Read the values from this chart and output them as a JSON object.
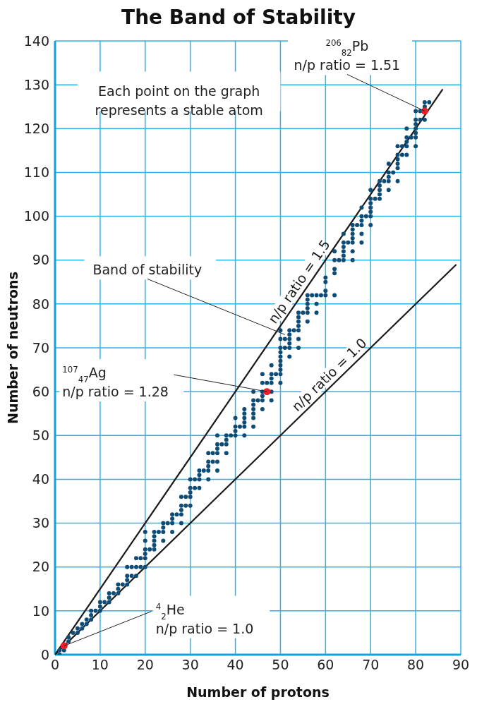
{
  "chart_data": {
    "type": "scatter",
    "title": "The Band of Stability",
    "xlabel": "Number of protons",
    "ylabel": "Number of neutrons",
    "xlim": [
      0,
      90
    ],
    "xticks": [
      0,
      10,
      20,
      30,
      40,
      50,
      60,
      70,
      80,
      90
    ],
    "ylim": [
      0,
      140
    ],
    "yticks": [
      0,
      10,
      20,
      30,
      40,
      50,
      60,
      70,
      80,
      90,
      100,
      110,
      120,
      130,
      140
    ],
    "grid": true,
    "legend": false,
    "marker": "circle",
    "series": [
      {
        "type": "scatter",
        "color": "#0f4c75",
        "x": [
          1,
          1,
          2,
          3,
          3,
          4,
          5,
          5,
          6,
          6,
          7,
          7,
          8,
          8,
          8,
          9,
          10,
          10,
          10,
          11,
          12,
          12,
          12,
          13,
          14,
          14,
          14,
          15,
          16,
          16,
          16,
          16,
          17,
          17,
          18,
          18,
          18,
          19,
          19,
          20,
          20,
          20,
          20,
          20,
          20,
          21,
          22,
          22,
          22,
          22,
          22,
          23,
          24,
          24,
          24,
          24,
          25,
          26,
          26,
          26,
          26,
          27,
          28,
          28,
          28,
          28,
          28,
          29,
          29,
          30,
          30,
          30,
          30,
          30,
          31,
          31,
          32,
          32,
          32,
          32,
          33,
          34,
          34,
          34,
          34,
          34,
          35,
          35,
          36,
          36,
          36,
          36,
          36,
          36,
          37,
          38,
          38,
          38,
          38,
          39,
          40,
          40,
          40,
          40,
          41,
          42,
          42,
          42,
          42,
          42,
          42,
          44,
          44,
          44,
          44,
          44,
          44,
          44,
          45,
          46,
          46,
          46,
          46,
          46,
          46,
          47,
          48,
          48,
          48,
          48,
          48,
          48,
          49,
          50,
          50,
          50,
          50,
          50,
          50,
          50,
          50,
          50,
          50,
          51,
          51,
          52,
          52,
          52,
          52,
          52,
          52,
          53,
          54,
          54,
          54,
          54,
          54,
          54,
          54,
          55,
          56,
          56,
          56,
          56,
          56,
          56,
          57,
          58,
          58,
          58,
          59,
          60,
          60,
          60,
          60,
          62,
          62,
          62,
          62,
          62,
          63,
          64,
          64,
          64,
          64,
          64,
          64,
          65,
          66,
          66,
          66,
          66,
          66,
          66,
          66,
          67,
          68,
          68,
          68,
          68,
          68,
          68,
          69,
          70,
          70,
          70,
          70,
          70,
          70,
          70,
          71,
          72,
          72,
          72,
          72,
          72,
          73,
          74,
          74,
          74,
          74,
          74,
          75,
          76,
          76,
          76,
          76,
          76,
          76,
          77,
          77,
          78,
          78,
          78,
          78,
          78,
          79,
          80,
          80,
          80,
          80,
          80,
          80,
          80,
          81,
          81,
          82,
          82,
          82,
          83
        ],
        "values": [
          0,
          1,
          1,
          3,
          4,
          5,
          5,
          6,
          6,
          7,
          7,
          8,
          8,
          9,
          10,
          10,
          10,
          11,
          12,
          12,
          12,
          13,
          14,
          14,
          14,
          15,
          16,
          16,
          16,
          17,
          18,
          20,
          18,
          20,
          18,
          20,
          22,
          20,
          22,
          20,
          22,
          23,
          24,
          26,
          28,
          24,
          24,
          25,
          26,
          27,
          28,
          28,
          26,
          28,
          29,
          30,
          30,
          28,
          30,
          31,
          32,
          32,
          30,
          32,
          33,
          34,
          36,
          34,
          36,
          34,
          36,
          37,
          38,
          40,
          38,
          40,
          38,
          40,
          41,
          42,
          42,
          40,
          42,
          43,
          44,
          46,
          44,
          46,
          42,
          44,
          46,
          47,
          48,
          50,
          48,
          46,
          48,
          49,
          50,
          50,
          50,
          51,
          52,
          54,
          52,
          50,
          52,
          53,
          54,
          55,
          56,
          52,
          54,
          55,
          56,
          57,
          58,
          60,
          58,
          56,
          58,
          59,
          60,
          62,
          64,
          62,
          58,
          60,
          62,
          63,
          64,
          66,
          64,
          62,
          64,
          65,
          66,
          67,
          68,
          69,
          70,
          72,
          74,
          70,
          72,
          68,
          70,
          71,
          72,
          73,
          74,
          74,
          70,
          72,
          74,
          75,
          76,
          77,
          78,
          78,
          76,
          78,
          79,
          80,
          81,
          82,
          82,
          78,
          80,
          82,
          82,
          82,
          83,
          85,
          86,
          82,
          87,
          88,
          90,
          92,
          90,
          90,
          91,
          92,
          93,
          94,
          96,
          94,
          90,
          92,
          94,
          95,
          96,
          97,
          98,
          98,
          94,
          96,
          98,
          99,
          100,
          102,
          100,
          98,
          100,
          101,
          102,
          103,
          104,
          106,
          104,
          104,
          105,
          106,
          107,
          108,
          108,
          106,
          108,
          109,
          110,
          112,
          110,
          108,
          111,
          112,
          113,
          114,
          116,
          114,
          116,
          114,
          116,
          117,
          118,
          120,
          118,
          116,
          118,
          119,
          120,
          121,
          122,
          124,
          122,
          124,
          122,
          125,
          126,
          126
        ]
      },
      {
        "type": "scatter",
        "color": "#e8202a",
        "x": [
          2,
          47,
          82
        ],
        "values": [
          2,
          60,
          124
        ]
      },
      {
        "marker": "none",
        "name": "n/p ratio = 1.5",
        "type": "line",
        "color": "#1a1a1a",
        "x": [
          0,
          86
        ],
        "values": [
          0,
          129
        ]
      },
      {
        "type": "line",
        "marker": "none",
        "name": "n/p ratio = 1.0",
        "color": "#1a1a1a",
        "x": [
          0,
          89
        ],
        "values": [
          0,
          89
        ]
      }
    ],
    "annotations": [
      "Each point on the graph represents a stable atom",
      {
        "text": "Band of stability",
        "x": 51,
        "y": 73
      },
      {
        "text": "$^{107}$$_{47}$Ag\nn/p ratio = 1.28",
        "x": 47,
        "y": 60
      },
      {
        "text": "$^{206}$$_{82}$Pb\nn/p ratio = 1.51",
        "x": 82,
        "y": 124
      },
      {
        "text": "$^{4}$$_{2}$He\nn/p ratio = 1.0",
        "x": 2,
        "y": 2
      }
    ]
  }
}
